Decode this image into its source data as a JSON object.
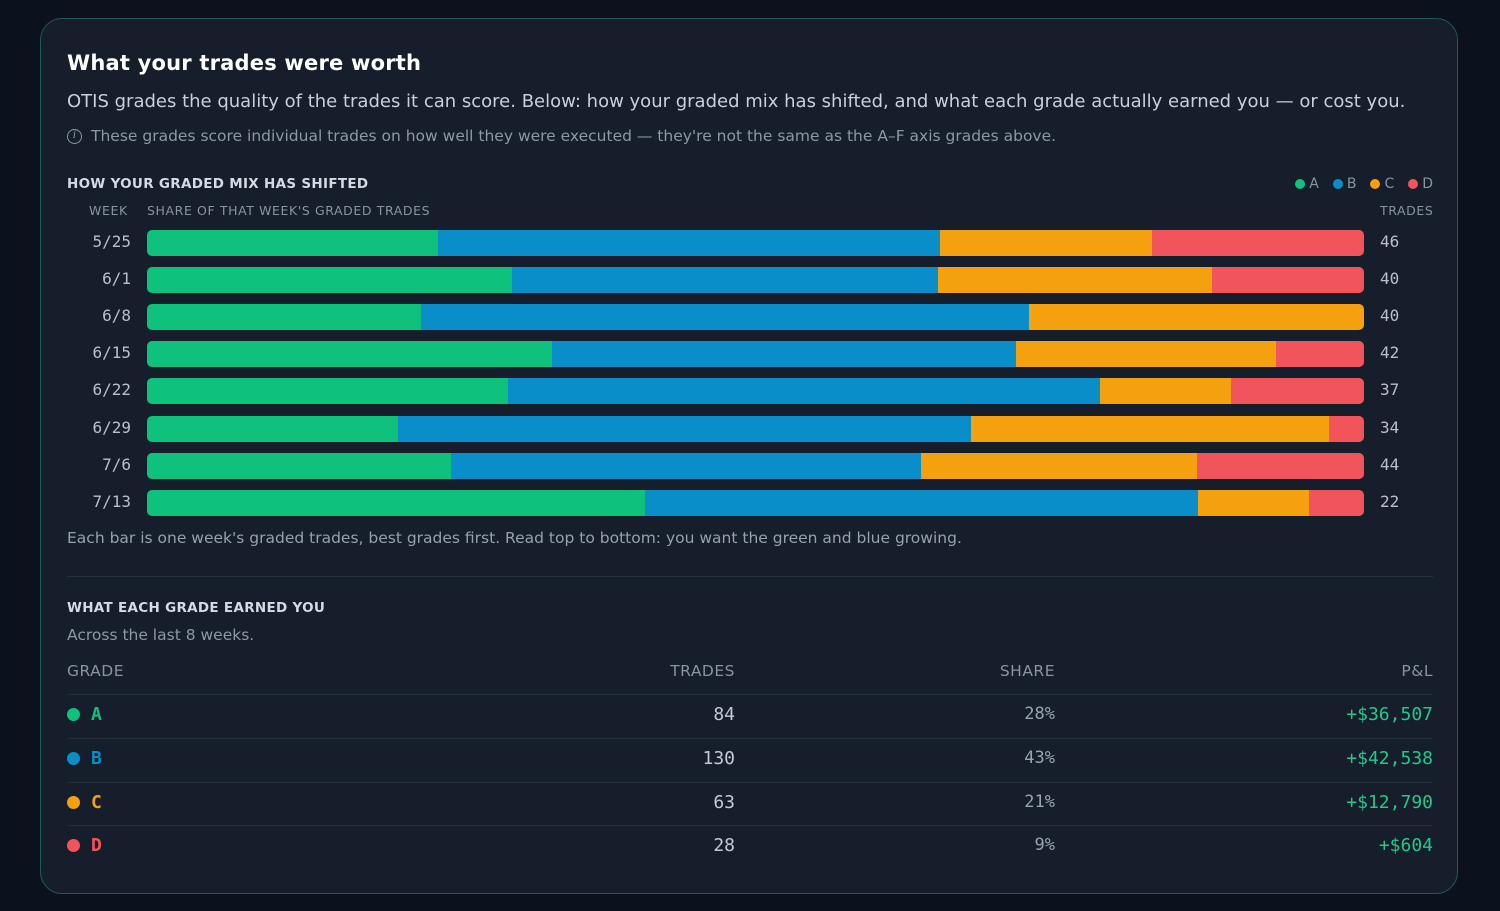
{
  "title": "What your trades were worth",
  "subtitle": "OTIS grades the quality of the trades it can score. Below: how your graded mix has shifted, and what each grade actually earned you — or cost you.",
  "note": "These grades score individual trades on how well they were executed — they're not the same as the A–F axis grades above.",
  "mix_section": {
    "label": "How your graded mix has shifted",
    "col_week": "WEEK",
    "col_share": "SHARE OF THAT WEEK'S GRADED TRADES",
    "col_trades": "TRADES",
    "caption": "Each bar is one week's graded trades, best grades first. Read top to bottom: you want the green and blue growing."
  },
  "colors": {
    "A": "#0ec27c",
    "B": "#0a8ec9",
    "C": "#f5a10f",
    "D": "#f2545b"
  },
  "chart_data": {
    "type": "bar",
    "stacked": true,
    "normalized": true,
    "orientation": "horizontal",
    "categories": [
      "5/25",
      "6/1",
      "6/8",
      "6/15",
      "6/22",
      "6/29",
      "7/6",
      "7/13"
    ],
    "series": [
      {
        "name": "A",
        "values": [
          23.9,
          30.0,
          22.5,
          33.3,
          29.7,
          20.6,
          25.0,
          40.9
        ]
      },
      {
        "name": "B",
        "values": [
          41.3,
          35.0,
          50.0,
          38.1,
          48.6,
          47.1,
          38.6,
          45.5
        ]
      },
      {
        "name": "C",
        "values": [
          17.4,
          22.5,
          27.5,
          21.4,
          10.8,
          29.4,
          22.7,
          9.1
        ]
      },
      {
        "name": "D",
        "values": [
          17.4,
          12.5,
          0,
          7.2,
          10.9,
          2.9,
          13.7,
          4.5
        ]
      }
    ],
    "trades": [
      "46",
      "40",
      "40",
      "42",
      "37",
      "34",
      "44",
      "22"
    ],
    "xlim": [
      0,
      100
    ],
    "legend_position": "top-right"
  },
  "earned_section": {
    "label": "What each grade earned you",
    "sub": "Across the last 8 weeks.",
    "headers": {
      "grade": "GRADE",
      "trades": "TRADES",
      "share": "SHARE",
      "pnl": "P&L"
    },
    "rows": [
      {
        "grade": "A",
        "trades": "84",
        "share": "28%",
        "pnl": "+$36,507"
      },
      {
        "grade": "B",
        "trades": "130",
        "share": "43%",
        "pnl": "+$42,538"
      },
      {
        "grade": "C",
        "trades": "63",
        "share": "21%",
        "pnl": "+$12,790"
      },
      {
        "grade": "D",
        "trades": "28",
        "share": "9%",
        "pnl": "+$604"
      }
    ]
  }
}
